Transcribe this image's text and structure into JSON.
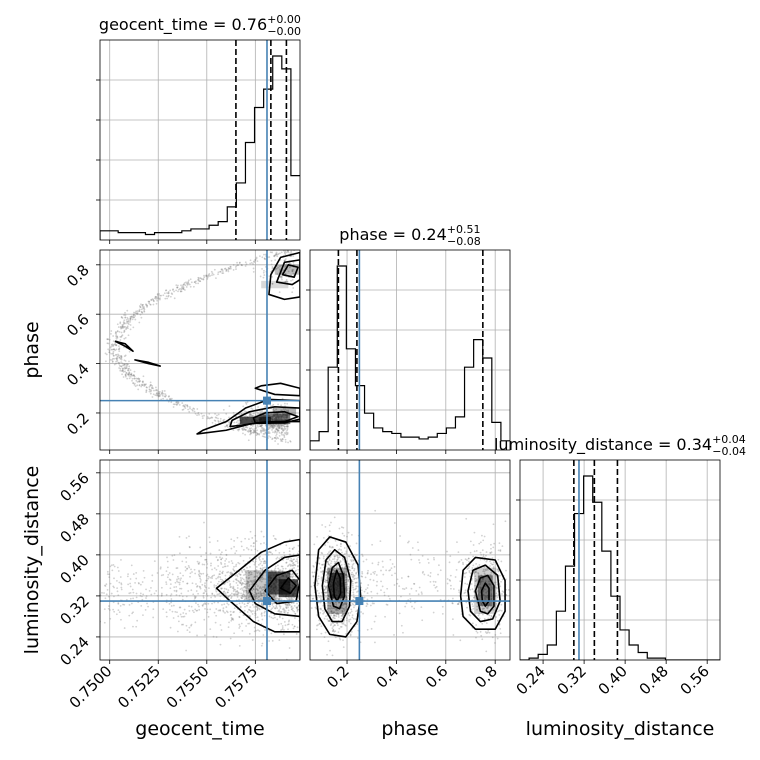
{
  "chart_data": {
    "type": "corner",
    "grid": true,
    "colors": {
      "truth": "#4682b4",
      "hist": "#000000",
      "grid": "#b0b0b0",
      "samples": "#7f7f7f"
    },
    "parameters": [
      {
        "name": "geocent_time",
        "axis_label": "geocent_time",
        "title_prefix": "geocent_time = 0.76",
        "title_plus": "+0.00",
        "title_minus": "−0.00",
        "range": [
          0.7495,
          0.7598
        ],
        "ticks": [
          0.75,
          0.7525,
          0.755,
          0.7575
        ],
        "tick_labels": [
          "0.7500",
          "0.7525",
          "0.7550",
          "0.7575"
        ],
        "truth": 0.7581,
        "quantiles": [
          0.7565,
          0.7583,
          0.7591
        ],
        "hist": [
          5,
          5,
          4,
          4,
          4,
          3,
          4,
          4,
          4,
          5,
          6,
          6,
          8,
          10,
          18,
          31,
          53,
          72,
          82,
          100,
          93,
          35
        ]
      },
      {
        "name": "phase",
        "axis_label": "phase",
        "title_prefix": "phase = 0.24",
        "title_plus": "+0.51",
        "title_minus": "−0.08",
        "range": [
          0.05,
          0.86
        ],
        "ticks": [
          0.2,
          0.4,
          0.6,
          0.8
        ],
        "tick_labels": [
          "0.2",
          "0.4",
          "0.6",
          "0.8"
        ],
        "truth": 0.25,
        "quantiles": [
          0.165,
          0.24,
          0.75
        ],
        "hist": [
          5,
          10,
          45,
          100,
          55,
          35,
          20,
          12,
          10,
          9,
          7,
          7,
          6,
          7,
          9,
          12,
          18,
          45,
          60,
          50,
          15,
          5
        ]
      },
      {
        "name": "luminosity_distance",
        "axis_label": "luminosity_distance",
        "title_prefix": "luminosity_distance = 0.34",
        "title_plus": "+0.04",
        "title_minus": "−0.04",
        "range": [
          0.195,
          0.585
        ],
        "ticks": [
          0.24,
          0.32,
          0.4,
          0.48,
          0.56
        ],
        "tick_labels": [
          "0.24",
          "0.32",
          "0.40",
          "0.48",
          "0.56"
        ],
        "truth": 0.31,
        "quantiles": [
          0.3,
          0.34,
          0.385
        ],
        "hist": [
          0,
          1,
          3,
          8,
          26,
          50,
          78,
          98,
          84,
          58,
          34,
          16,
          8,
          4,
          1,
          1,
          0,
          0,
          0,
          0,
          0,
          0
        ]
      }
    ],
    "pairs": [
      {
        "x": "geocent_time",
        "y": "phase",
        "density": [
          {
            "x": 0.7575,
            "y": 0.17,
            "w": 0.0016,
            "h": 0.03,
            "level": 0.95
          },
          {
            "x": 0.7585,
            "y": 0.175,
            "w": 0.0016,
            "h": 0.04,
            "level": 0.7
          },
          {
            "x": 0.759,
            "y": 0.205,
            "w": 0.0012,
            "h": 0.03,
            "level": 0.4
          },
          {
            "x": 0.7592,
            "y": 0.78,
            "w": 0.0014,
            "h": 0.04,
            "level": 0.35
          },
          {
            "x": 0.7585,
            "y": 0.72,
            "w": 0.0014,
            "h": 0.03,
            "level": 0.2
          }
        ],
        "contours": [
          [
            [
              0.7545,
              0.115
            ],
            [
              0.756,
              0.13
            ],
            [
              0.7572,
              0.155
            ],
            [
              0.7582,
              0.165
            ],
            [
              0.7598,
              0.165
            ],
            [
              0.7598,
              0.25
            ],
            [
              0.7582,
              0.255
            ],
            [
              0.757,
              0.22
            ],
            [
              0.756,
              0.165
            ],
            [
              0.7548,
              0.13
            ]
          ],
          [
            [
              0.7562,
              0.145
            ],
            [
              0.7575,
              0.158
            ],
            [
              0.759,
              0.16
            ],
            [
              0.7598,
              0.175
            ],
            [
              0.7598,
              0.22
            ],
            [
              0.7585,
              0.225
            ],
            [
              0.7572,
              0.205
            ],
            [
              0.7563,
              0.17
            ]
          ],
          [
            [
              0.7575,
              0.16
            ],
            [
              0.759,
              0.165
            ],
            [
              0.7597,
              0.185
            ],
            [
              0.759,
              0.205
            ],
            [
              0.758,
              0.2
            ],
            [
              0.7574,
              0.18
            ]
          ],
          [
            [
              0.7575,
              0.3
            ],
            [
              0.7585,
              0.275
            ],
            [
              0.7598,
              0.27
            ],
            [
              0.7598,
              0.3
            ],
            [
              0.7588,
              0.32
            ],
            [
              0.7578,
              0.31
            ]
          ],
          [
            [
              0.7582,
              0.68
            ],
            [
              0.759,
              0.66
            ],
            [
              0.7598,
              0.67
            ],
            [
              0.7598,
              0.85
            ],
            [
              0.7588,
              0.83
            ],
            [
              0.7583,
              0.76
            ]
          ],
          [
            [
              0.7586,
              0.73
            ],
            [
              0.7594,
              0.72
            ],
            [
              0.7598,
              0.74
            ],
            [
              0.7598,
              0.82
            ],
            [
              0.759,
              0.81
            ]
          ],
          [
            [
              0.7589,
              0.76
            ],
            [
              0.7595,
              0.75
            ],
            [
              0.7597,
              0.79
            ],
            [
              0.7592,
              0.8
            ]
          ],
          [
            [
              0.7503,
              0.49
            ],
            [
              0.7508,
              0.47
            ],
            [
              0.7512,
              0.45
            ],
            [
              0.7508,
              0.48
            ]
          ],
          [
            [
              0.7513,
              0.415
            ],
            [
              0.752,
              0.4
            ],
            [
              0.7526,
              0.39
            ],
            [
              0.752,
              0.405
            ]
          ]
        ]
      },
      {
        "x": "geocent_time",
        "y": "luminosity_distance",
        "density": [
          {
            "x": 0.7587,
            "y": 0.345,
            "w": 0.0012,
            "h": 0.045,
            "level": 0.85
          },
          {
            "x": 0.7592,
            "y": 0.335,
            "w": 0.001,
            "h": 0.035,
            "level": 0.9
          },
          {
            "x": 0.7578,
            "y": 0.34,
            "w": 0.0016,
            "h": 0.06,
            "level": 0.3
          }
        ],
        "contours": [
          [
            [
              0.7555,
              0.335
            ],
            [
              0.7565,
              0.365
            ],
            [
              0.7578,
              0.405
            ],
            [
              0.759,
              0.425
            ],
            [
              0.7598,
              0.43
            ],
            [
              0.7598,
              0.25
            ],
            [
              0.7585,
              0.25
            ],
            [
              0.7574,
              0.27
            ],
            [
              0.7562,
              0.31
            ]
          ],
          [
            [
              0.7572,
              0.33
            ],
            [
              0.758,
              0.37
            ],
            [
              0.759,
              0.395
            ],
            [
              0.7598,
              0.4
            ],
            [
              0.7598,
              0.28
            ],
            [
              0.7585,
              0.285
            ],
            [
              0.7575,
              0.305
            ]
          ],
          [
            [
              0.758,
              0.33
            ],
            [
              0.7586,
              0.36
            ],
            [
              0.7594,
              0.37
            ],
            [
              0.7598,
              0.35
            ],
            [
              0.7596,
              0.31
            ],
            [
              0.7586,
              0.305
            ]
          ],
          [
            [
              0.7588,
              0.335
            ],
            [
              0.7592,
              0.355
            ],
            [
              0.7596,
              0.34
            ],
            [
              0.7593,
              0.325
            ]
          ]
        ]
      },
      {
        "x": "phase",
        "y": "luminosity_distance",
        "density": [
          {
            "x": 0.16,
            "y": 0.34,
            "w": 0.06,
            "h": 0.05,
            "level": 0.9
          },
          {
            "x": 0.16,
            "y": 0.33,
            "w": 0.08,
            "h": 0.09,
            "level": 0.45
          },
          {
            "x": 0.76,
            "y": 0.33,
            "w": 0.06,
            "h": 0.06,
            "level": 0.6
          },
          {
            "x": 0.76,
            "y": 0.33,
            "w": 0.09,
            "h": 0.09,
            "level": 0.25
          }
        ],
        "contours": [
          [
            [
              0.07,
              0.34
            ],
            [
              0.085,
              0.41
            ],
            [
              0.13,
              0.435
            ],
            [
              0.195,
              0.425
            ],
            [
              0.245,
              0.38
            ],
            [
              0.255,
              0.32
            ],
            [
              0.24,
              0.27
            ],
            [
              0.195,
              0.24
            ],
            [
              0.13,
              0.245
            ],
            [
              0.085,
              0.28
            ]
          ],
          [
            [
              0.1,
              0.34
            ],
            [
              0.115,
              0.39
            ],
            [
              0.15,
              0.41
            ],
            [
              0.19,
              0.395
            ],
            [
              0.215,
              0.35
            ],
            [
              0.21,
              0.3
            ],
            [
              0.18,
              0.27
            ],
            [
              0.14,
              0.27
            ],
            [
              0.11,
              0.295
            ]
          ],
          [
            [
              0.125,
              0.34
            ],
            [
              0.14,
              0.375
            ],
            [
              0.165,
              0.385
            ],
            [
              0.185,
              0.36
            ],
            [
              0.19,
              0.32
            ],
            [
              0.17,
              0.295
            ],
            [
              0.145,
              0.3
            ]
          ],
          [
            [
              0.145,
              0.345
            ],
            [
              0.158,
              0.37
            ],
            [
              0.172,
              0.355
            ],
            [
              0.174,
              0.325
            ],
            [
              0.16,
              0.31
            ],
            [
              0.148,
              0.32
            ]
          ],
          [
            [
              0.66,
              0.32
            ],
            [
              0.67,
              0.37
            ],
            [
              0.72,
              0.395
            ],
            [
              0.8,
              0.39
            ],
            [
              0.84,
              0.35
            ],
            [
              0.84,
              0.29
            ],
            [
              0.8,
              0.255
            ],
            [
              0.72,
              0.255
            ],
            [
              0.67,
              0.28
            ]
          ],
          [
            [
              0.69,
              0.33
            ],
            [
              0.71,
              0.37
            ],
            [
              0.76,
              0.38
            ],
            [
              0.81,
              0.36
            ],
            [
              0.82,
              0.31
            ],
            [
              0.79,
              0.275
            ],
            [
              0.74,
              0.27
            ],
            [
              0.7,
              0.29
            ]
          ],
          [
            [
              0.72,
              0.33
            ],
            [
              0.74,
              0.355
            ],
            [
              0.77,
              0.36
            ],
            [
              0.795,
              0.34
            ],
            [
              0.795,
              0.3
            ],
            [
              0.77,
              0.285
            ],
            [
              0.74,
              0.29
            ]
          ],
          [
            [
              0.745,
              0.33
            ],
            [
              0.76,
              0.345
            ],
            [
              0.775,
              0.335
            ],
            [
              0.775,
              0.31
            ],
            [
              0.76,
              0.3
            ],
            [
              0.748,
              0.31
            ]
          ]
        ]
      }
    ]
  }
}
